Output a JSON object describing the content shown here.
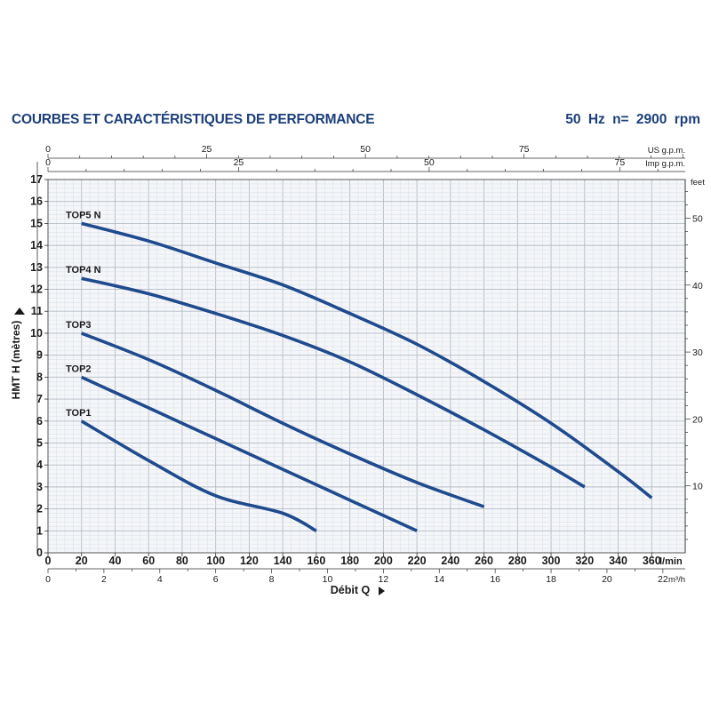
{
  "header": {
    "title": "COURBES ET CARACTÉRISTIQUES DE PERFORMANCE",
    "frequency": "50 Hz",
    "speed": "n= 2900 rpm"
  },
  "chart_data": {
    "type": "line",
    "grid": true,
    "xlabel": "Débit Q",
    "ylabel": "HMT H (mètres)",
    "x_unit": "l/min",
    "xlim": [
      0,
      380
    ],
    "ylim": [
      0,
      17
    ],
    "x_ticks": [
      0,
      20,
      40,
      60,
      80,
      100,
      120,
      140,
      160,
      180,
      200,
      220,
      240,
      260,
      280,
      300,
      320,
      340,
      360
    ],
    "y_ticks": [
      0,
      1,
      2,
      3,
      4,
      5,
      6,
      7,
      8,
      9,
      10,
      11,
      12,
      13,
      14,
      15,
      16,
      17
    ],
    "secondary_axes": {
      "us_gpm": {
        "label": "US g.p.m.",
        "ticks": [
          0,
          25,
          50,
          75
        ]
      },
      "imp_gpm": {
        "label": "Imp g.p.m.",
        "ticks": [
          0,
          25,
          50,
          75
        ]
      },
      "feet": {
        "label": "feet",
        "ticks": [
          10,
          20,
          30,
          40,
          50
        ]
      },
      "m3h": {
        "label": "m³/h",
        "ticks": [
          0,
          2,
          4,
          6,
          8,
          10,
          12,
          14,
          16,
          18,
          20,
          22
        ]
      }
    },
    "series": [
      {
        "name": "TOP1",
        "x": [
          20,
          60,
          100,
          140,
          160
        ],
        "y": [
          6,
          4.2,
          2.6,
          1.8,
          1
        ]
      },
      {
        "name": "TOP2",
        "x": [
          20,
          60,
          100,
          140,
          180,
          220
        ],
        "y": [
          8,
          6.6,
          5.2,
          3.8,
          2.4,
          1
        ]
      },
      {
        "name": "TOP3",
        "x": [
          20,
          60,
          100,
          140,
          180,
          220,
          260
        ],
        "y": [
          10,
          8.8,
          7.4,
          5.9,
          4.5,
          3.2,
          2.1
        ]
      },
      {
        "name": "TOP4 N",
        "x": [
          20,
          60,
          100,
          140,
          180,
          220,
          260,
          300,
          320
        ],
        "y": [
          12.5,
          11.8,
          10.9,
          9.9,
          8.7,
          7.2,
          5.6,
          3.9,
          3
        ]
      },
      {
        "name": "TOP5 N",
        "x": [
          20,
          60,
          100,
          140,
          180,
          220,
          260,
          300,
          340,
          360
        ],
        "y": [
          15,
          14.2,
          13.2,
          12.2,
          10.9,
          9.5,
          7.8,
          5.9,
          3.7,
          2.5
        ]
      }
    ],
    "line_color": "#1f4b8e",
    "text_color": "#1c3f7a"
  }
}
